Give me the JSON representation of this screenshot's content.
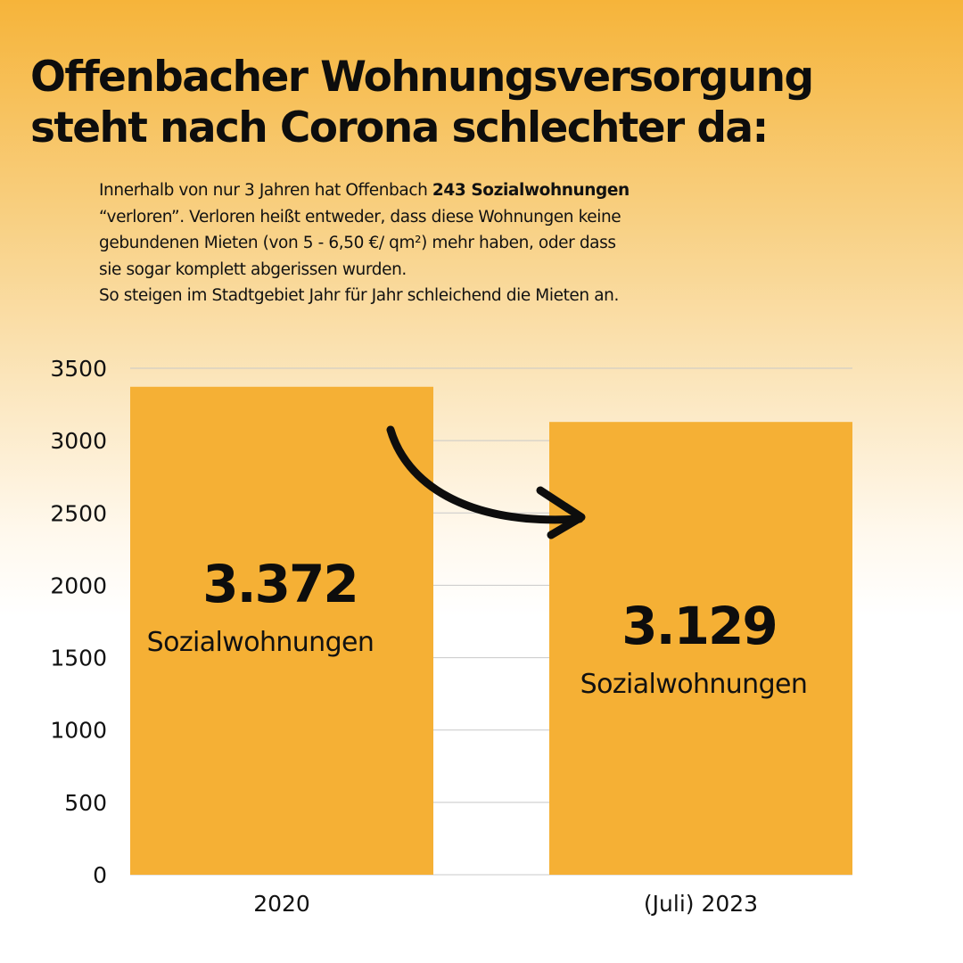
{
  "headline": {
    "line1": "Offenbacher Wohnungsversorgung",
    "line2": "steht nach Corona schlechter da:"
  },
  "intro": {
    "line1_pre": "Innerhalb von nur 3 Jahren hat Offenbach ",
    "line1_bold": "243 Sozialwohnungen",
    "line2": "“verloren”. Verloren heißt entweder, dass diese Wohnungen keine",
    "line3": "gebundenen Mieten (von 5 - 6,50 €/ qm²) mehr haben, oder dass",
    "line4": "sie sogar komplett abgerissen wurden.",
    "line5": "So steigen im Stadtgebiet Jahr für Jahr schleichend die Mieten an."
  },
  "colors": {
    "bar": "#f5b035",
    "grid": "#c8c8c8",
    "arrow": "#0d0d0d"
  },
  "arrow_icon": "curved-arrow-right-icon",
  "chart_data": {
    "type": "bar",
    "categories": [
      "2020",
      "(Juli) 2023"
    ],
    "values": [
      3372,
      3129
    ],
    "value_labels": [
      "3.372",
      "3.129"
    ],
    "unit_label": "Sozialwohnungen",
    "ylim": [
      0,
      3500
    ],
    "yticks": [
      0,
      500,
      1000,
      1500,
      2000,
      2500,
      3000,
      3500
    ],
    "grid": true,
    "legend": "none"
  }
}
